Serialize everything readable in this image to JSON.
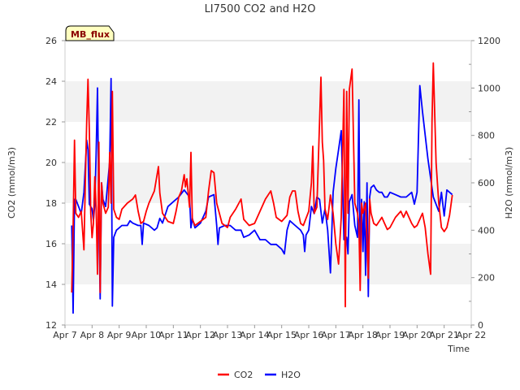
{
  "chart_data": {
    "type": "line",
    "title": "LI7500 CO2 and H2O",
    "site_tag": "MB_flux",
    "xlabel": "Time",
    "ylabel_left": "CO2 (mmol/m3)",
    "ylabel_right": "H2O (mmol/m3)",
    "x_range": [
      7,
      22
    ],
    "x_ticks": [
      {
        "v": 7,
        "label": "Apr 7"
      },
      {
        "v": 8,
        "label": "Apr 8"
      },
      {
        "v": 9,
        "label": "Apr 9"
      },
      {
        "v": 10,
        "label": "Apr 10"
      },
      {
        "v": 11,
        "label": "Apr 11"
      },
      {
        "v": 12,
        "label": "Apr 12"
      },
      {
        "v": 13,
        "label": "Apr 13"
      },
      {
        "v": 14,
        "label": "Apr 14"
      },
      {
        "v": 15,
        "label": "Apr 15"
      },
      {
        "v": 16,
        "label": "Apr 16"
      },
      {
        "v": 17,
        "label": "Apr 17"
      },
      {
        "v": 18,
        "label": "Apr 18"
      },
      {
        "v": 19,
        "label": "Apr 19"
      },
      {
        "v": 20,
        "label": "Apr 20"
      },
      {
        "v": 21,
        "label": "Apr 21"
      },
      {
        "v": 22,
        "label": "Apr 22"
      }
    ],
    "ylim_left": [
      12,
      26
    ],
    "y_ticks_left": [
      12,
      14,
      16,
      18,
      20,
      22,
      24,
      26
    ],
    "ylim_right": [
      0,
      1200
    ],
    "y_ticks_right": [
      0,
      200,
      400,
      600,
      800,
      1000,
      1200
    ],
    "grid": "horizontal bands",
    "legend_position": "bottom-center",
    "colors": {
      "co2": "#ff0000",
      "h2o": "#0000ff",
      "band": "#f2f2f2",
      "tag_fill": "#ffffc0"
    },
    "series": [
      {
        "name": "CO2",
        "axis": "left",
        "points": [
          [
            7.25,
            13.6
          ],
          [
            7.3,
            16.8
          ],
          [
            7.35,
            21.1
          ],
          [
            7.4,
            17.5
          ],
          [
            7.5,
            17.3
          ],
          [
            7.6,
            17.6
          ],
          [
            7.7,
            15.7
          ],
          [
            7.75,
            19.0
          ],
          [
            7.8,
            22.0
          ],
          [
            7.85,
            24.1
          ],
          [
            7.9,
            21.5
          ],
          [
            7.95,
            17.5
          ],
          [
            8.0,
            16.3
          ],
          [
            8.05,
            17.0
          ],
          [
            8.1,
            19.3
          ],
          [
            8.15,
            17.8
          ],
          [
            8.2,
            14.5
          ],
          [
            8.25,
            21.0
          ],
          [
            8.3,
            13.6
          ],
          [
            8.35,
            19.0
          ],
          [
            8.4,
            18.0
          ],
          [
            8.5,
            17.5
          ],
          [
            8.6,
            17.8
          ],
          [
            8.65,
            20.5
          ],
          [
            8.7,
            18.0
          ],
          [
            8.75,
            23.5
          ],
          [
            8.8,
            17.7
          ],
          [
            8.9,
            17.3
          ],
          [
            9.0,
            17.2
          ],
          [
            9.1,
            17.7
          ],
          [
            9.3,
            18.0
          ],
          [
            9.5,
            18.2
          ],
          [
            9.6,
            18.4
          ],
          [
            9.7,
            17.6
          ],
          [
            9.8,
            17.0
          ],
          [
            9.9,
            17.1
          ],
          [
            10.0,
            17.6
          ],
          [
            10.1,
            18.0
          ],
          [
            10.3,
            18.6
          ],
          [
            10.45,
            19.8
          ],
          [
            10.5,
            18.5
          ],
          [
            10.6,
            17.5
          ],
          [
            10.8,
            17.1
          ],
          [
            11.0,
            17.0
          ],
          [
            11.1,
            17.6
          ],
          [
            11.2,
            18.3
          ],
          [
            11.3,
            18.6
          ],
          [
            11.4,
            19.4
          ],
          [
            11.45,
            18.8
          ],
          [
            11.5,
            19.2
          ],
          [
            11.6,
            17.8
          ],
          [
            11.65,
            20.5
          ],
          [
            11.7,
            17.2
          ],
          [
            11.8,
            16.9
          ],
          [
            12.0,
            17.1
          ],
          [
            12.2,
            17.3
          ],
          [
            12.3,
            18.6
          ],
          [
            12.4,
            19.6
          ],
          [
            12.5,
            19.5
          ],
          [
            12.6,
            18.0
          ],
          [
            12.8,
            17.0
          ],
          [
            13.0,
            16.8
          ],
          [
            13.1,
            17.3
          ],
          [
            13.3,
            17.7
          ],
          [
            13.5,
            18.2
          ],
          [
            13.6,
            17.2
          ],
          [
            13.8,
            16.9
          ],
          [
            14.0,
            17.0
          ],
          [
            14.2,
            17.6
          ],
          [
            14.4,
            18.2
          ],
          [
            14.6,
            18.6
          ],
          [
            14.7,
            18.0
          ],
          [
            14.8,
            17.3
          ],
          [
            15.0,
            17.1
          ],
          [
            15.2,
            17.4
          ],
          [
            15.3,
            18.3
          ],
          [
            15.4,
            18.6
          ],
          [
            15.5,
            18.6
          ],
          [
            15.6,
            17.6
          ],
          [
            15.7,
            17.0
          ],
          [
            15.8,
            16.9
          ],
          [
            16.0,
            17.6
          ],
          [
            16.1,
            19.0
          ],
          [
            16.15,
            20.8
          ],
          [
            16.2,
            17.5
          ],
          [
            16.3,
            17.8
          ],
          [
            16.4,
            22.0
          ],
          [
            16.45,
            24.2
          ],
          [
            16.5,
            21.0
          ],
          [
            16.55,
            20.1
          ],
          [
            16.6,
            17.7
          ],
          [
            16.7,
            17.2
          ],
          [
            16.8,
            18.4
          ],
          [
            16.9,
            17.5
          ],
          [
            17.0,
            16.0
          ],
          [
            17.1,
            15.0
          ],
          [
            17.2,
            17.3
          ],
          [
            17.3,
            23.6
          ],
          [
            17.35,
            12.9
          ],
          [
            17.4,
            23.5
          ],
          [
            17.45,
            17.5
          ],
          [
            17.5,
            23.6
          ],
          [
            17.6,
            24.6
          ],
          [
            17.7,
            18.0
          ],
          [
            17.8,
            17.5
          ],
          [
            17.85,
            17.0
          ],
          [
            17.9,
            13.7
          ],
          [
            17.95,
            18.0
          ],
          [
            18.0,
            17.5
          ],
          [
            18.1,
            18.0
          ],
          [
            18.2,
            14.3
          ],
          [
            18.25,
            18.2
          ],
          [
            18.3,
            17.5
          ],
          [
            18.4,
            17.0
          ],
          [
            18.5,
            16.9
          ],
          [
            18.7,
            17.3
          ],
          [
            18.8,
            17.0
          ],
          [
            18.9,
            16.7
          ],
          [
            19.0,
            16.8
          ],
          [
            19.2,
            17.3
          ],
          [
            19.4,
            17.6
          ],
          [
            19.5,
            17.3
          ],
          [
            19.6,
            17.6
          ],
          [
            19.8,
            17.0
          ],
          [
            19.9,
            16.8
          ],
          [
            20.0,
            16.9
          ],
          [
            20.2,
            17.5
          ],
          [
            20.3,
            16.8
          ],
          [
            20.4,
            15.5
          ],
          [
            20.5,
            14.5
          ],
          [
            20.55,
            22.0
          ],
          [
            20.6,
            24.9
          ],
          [
            20.7,
            20.0
          ],
          [
            20.8,
            18.0
          ],
          [
            20.9,
            16.8
          ],
          [
            21.0,
            16.6
          ],
          [
            21.1,
            16.8
          ],
          [
            21.2,
            17.4
          ],
          [
            21.3,
            18.4
          ]
        ]
      },
      {
        "name": "H2O",
        "axis": "right",
        "points": [
          [
            7.25,
            420
          ],
          [
            7.3,
            50
          ],
          [
            7.35,
            530
          ],
          [
            7.4,
            530
          ],
          [
            7.5,
            500
          ],
          [
            7.6,
            470
          ],
          [
            7.7,
            560
          ],
          [
            7.8,
            780
          ],
          [
            7.85,
            740
          ],
          [
            7.9,
            510
          ],
          [
            8.0,
            490
          ],
          [
            8.05,
            440
          ],
          [
            8.1,
            510
          ],
          [
            8.15,
            720
          ],
          [
            8.2,
            1000
          ],
          [
            8.25,
            480
          ],
          [
            8.3,
            110
          ],
          [
            8.35,
            600
          ],
          [
            8.4,
            530
          ],
          [
            8.5,
            500
          ],
          [
            8.65,
            690
          ],
          [
            8.7,
            1040
          ],
          [
            8.75,
            80
          ],
          [
            8.8,
            370
          ],
          [
            8.9,
            400
          ],
          [
            9.0,
            410
          ],
          [
            9.1,
            420
          ],
          [
            9.3,
            420
          ],
          [
            9.4,
            440
          ],
          [
            9.5,
            430
          ],
          [
            9.7,
            420
          ],
          [
            9.8,
            420
          ],
          [
            9.85,
            340
          ],
          [
            9.9,
            430
          ],
          [
            10.1,
            420
          ],
          [
            10.3,
            400
          ],
          [
            10.4,
            410
          ],
          [
            10.5,
            450
          ],
          [
            10.6,
            430
          ],
          [
            10.8,
            500
          ],
          [
            11.0,
            520
          ],
          [
            11.2,
            540
          ],
          [
            11.4,
            570
          ],
          [
            11.6,
            540
          ],
          [
            11.65,
            410
          ],
          [
            11.7,
            450
          ],
          [
            11.8,
            410
          ],
          [
            12.0,
            430
          ],
          [
            12.2,
            480
          ],
          [
            12.3,
            540
          ],
          [
            12.5,
            550
          ],
          [
            12.6,
            420
          ],
          [
            12.65,
            340
          ],
          [
            12.7,
            410
          ],
          [
            12.9,
            420
          ],
          [
            13.1,
            420
          ],
          [
            13.3,
            400
          ],
          [
            13.5,
            400
          ],
          [
            13.6,
            370
          ],
          [
            13.8,
            380
          ],
          [
            14.0,
            400
          ],
          [
            14.2,
            360
          ],
          [
            14.4,
            360
          ],
          [
            14.6,
            340
          ],
          [
            14.8,
            340
          ],
          [
            15.0,
            320
          ],
          [
            15.1,
            300
          ],
          [
            15.2,
            400
          ],
          [
            15.3,
            440
          ],
          [
            15.5,
            420
          ],
          [
            15.7,
            400
          ],
          [
            15.8,
            380
          ],
          [
            15.85,
            310
          ],
          [
            15.9,
            380
          ],
          [
            16.0,
            400
          ],
          [
            16.1,
            500
          ],
          [
            16.2,
            470
          ],
          [
            16.3,
            540
          ],
          [
            16.4,
            530
          ],
          [
            16.5,
            430
          ],
          [
            16.6,
            490
          ],
          [
            16.7,
            400
          ],
          [
            16.8,
            220
          ],
          [
            16.9,
            560
          ],
          [
            17.0,
            660
          ],
          [
            17.1,
            740
          ],
          [
            17.2,
            820
          ],
          [
            17.3,
            360
          ],
          [
            17.4,
            370
          ],
          [
            17.45,
            300
          ],
          [
            17.5,
            520
          ],
          [
            17.6,
            550
          ],
          [
            17.7,
            420
          ],
          [
            17.8,
            370
          ],
          [
            17.85,
            950
          ],
          [
            17.9,
            240
          ],
          [
            17.95,
            530
          ],
          [
            18.0,
            310
          ],
          [
            18.05,
            520
          ],
          [
            18.1,
            210
          ],
          [
            18.15,
            600
          ],
          [
            18.2,
            120
          ],
          [
            18.25,
            540
          ],
          [
            18.3,
            580
          ],
          [
            18.4,
            590
          ],
          [
            18.5,
            570
          ],
          [
            18.6,
            560
          ],
          [
            18.7,
            560
          ],
          [
            18.8,
            540
          ],
          [
            18.9,
            540
          ],
          [
            19.0,
            560
          ],
          [
            19.2,
            550
          ],
          [
            19.4,
            540
          ],
          [
            19.6,
            540
          ],
          [
            19.8,
            560
          ],
          [
            19.9,
            510
          ],
          [
            20.0,
            560
          ],
          [
            20.1,
            1010
          ],
          [
            20.2,
            900
          ],
          [
            20.4,
            700
          ],
          [
            20.6,
            540
          ],
          [
            20.8,
            480
          ],
          [
            20.9,
            560
          ],
          [
            21.0,
            460
          ],
          [
            21.1,
            570
          ],
          [
            21.2,
            560
          ],
          [
            21.3,
            550
          ]
        ]
      }
    ]
  }
}
